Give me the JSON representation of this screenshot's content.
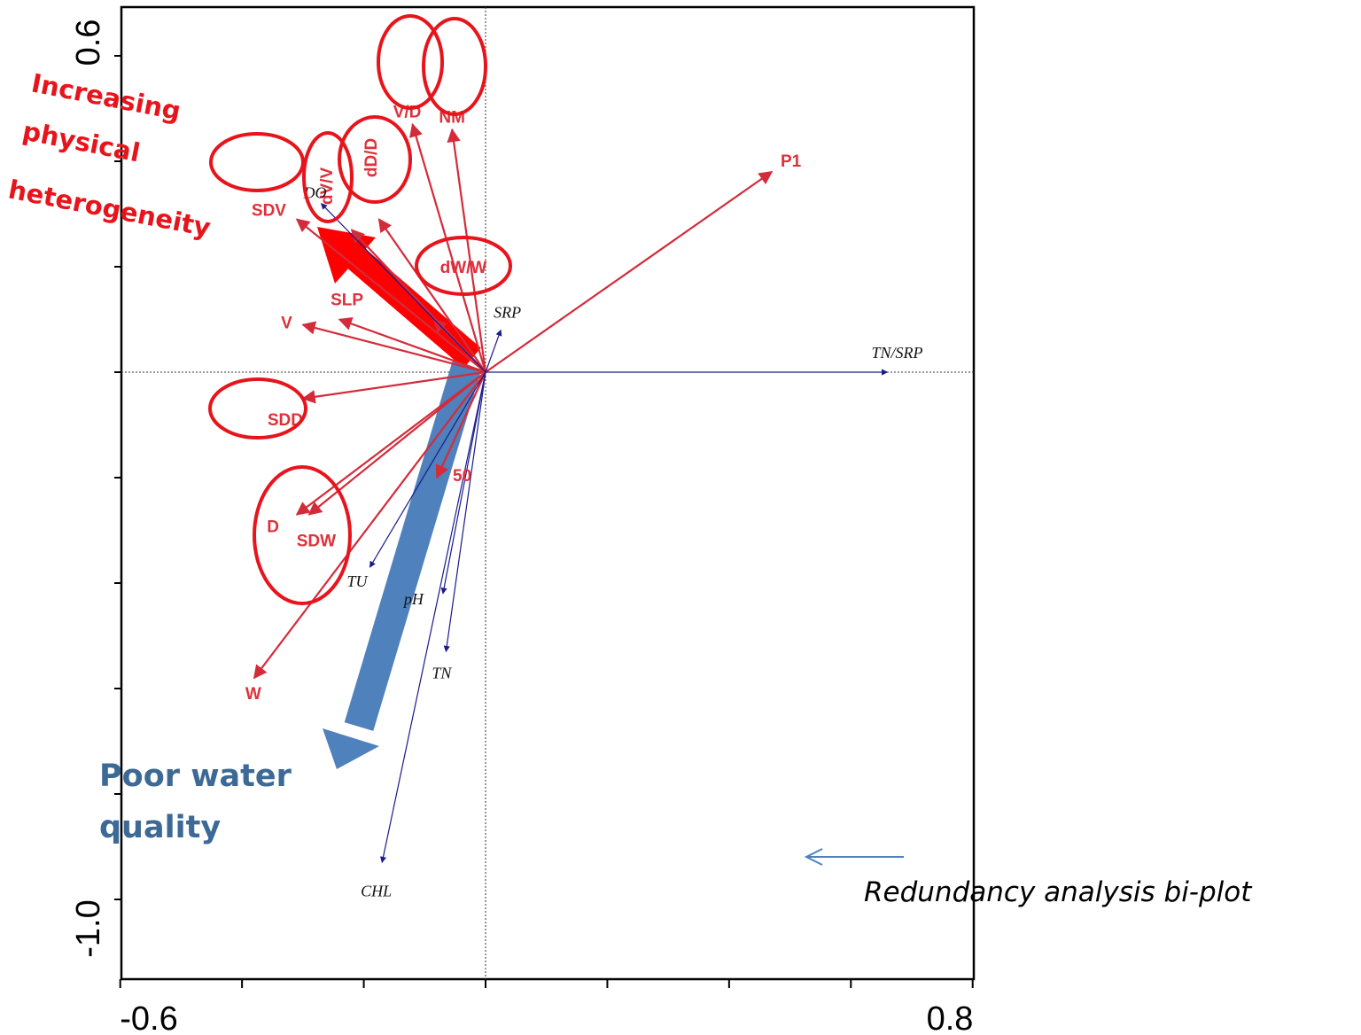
{
  "chart_data": {
    "type": "scatter",
    "title": "",
    "xlabel": "",
    "ylabel": "",
    "xlim": [
      -0.6,
      0.8
    ],
    "ylim": [
      -1.0,
      0.6
    ],
    "x_tick_labels": [
      "-0.6",
      "0.8"
    ],
    "y_tick_labels": [
      "0.6",
      "-1.0"
    ],
    "origin_lines": true,
    "series": [
      {
        "group": "physical",
        "color": "#d42b3a",
        "vectors": [
          {
            "label": "V/D",
            "x": -0.12,
            "y": 0.47
          },
          {
            "label": "NM",
            "x": -0.055,
            "y": 0.46
          },
          {
            "label": "P1",
            "x": 0.47,
            "y": 0.38
          },
          {
            "label": "dD/D",
            "x": -0.175,
            "y": 0.29
          },
          {
            "label": "dV/V",
            "x": -0.22,
            "y": 0.27
          },
          {
            "label": "SDV",
            "x": -0.31,
            "y": 0.29
          },
          {
            "label": "dW/W",
            "x": -0.085,
            "y": 0.1
          },
          {
            "label": "SLP",
            "x": -0.24,
            "y": 0.1
          },
          {
            "label": "V",
            "x": -0.3,
            "y": 0.09
          },
          {
            "label": "SDD",
            "x": -0.3,
            "y": -0.05
          },
          {
            "label": "D",
            "x": -0.31,
            "y": -0.27
          },
          {
            "label": "SDW",
            "x": -0.29,
            "y": -0.27
          },
          {
            "label": "50",
            "x": -0.08,
            "y": -0.2
          },
          {
            "label": "W",
            "x": -0.38,
            "y": -0.58
          }
        ]
      },
      {
        "group": "water-quality",
        "color": "#1a1a8c",
        "vectors": [
          {
            "label": "DO",
            "x": -0.27,
            "y": 0.32
          },
          {
            "label": "SRP",
            "x": 0.025,
            "y": 0.08
          },
          {
            "label": "TN/SRP",
            "x": 0.66,
            "y": 0.0
          },
          {
            "label": "TU",
            "x": -0.19,
            "y": -0.37
          },
          {
            "label": "pH",
            "x": -0.07,
            "y": -0.42
          },
          {
            "label": "TN",
            "x": -0.065,
            "y": -0.53
          },
          {
            "label": "CHL",
            "x": -0.17,
            "y": -0.93
          }
        ]
      }
    ],
    "annotations": [
      {
        "text": [
          "Increasing",
          "physical",
          "heterogeneity"
        ],
        "color": "#e8141c",
        "arrow_dir": [
          -0.3,
          0.25
        ]
      },
      {
        "text": [
          "Poor water",
          "quality"
        ],
        "color": "#3d6996",
        "arrow_dir": [
          -0.2,
          -0.65
        ]
      }
    ],
    "caption": "Redundancy analysis bi-plot"
  }
}
